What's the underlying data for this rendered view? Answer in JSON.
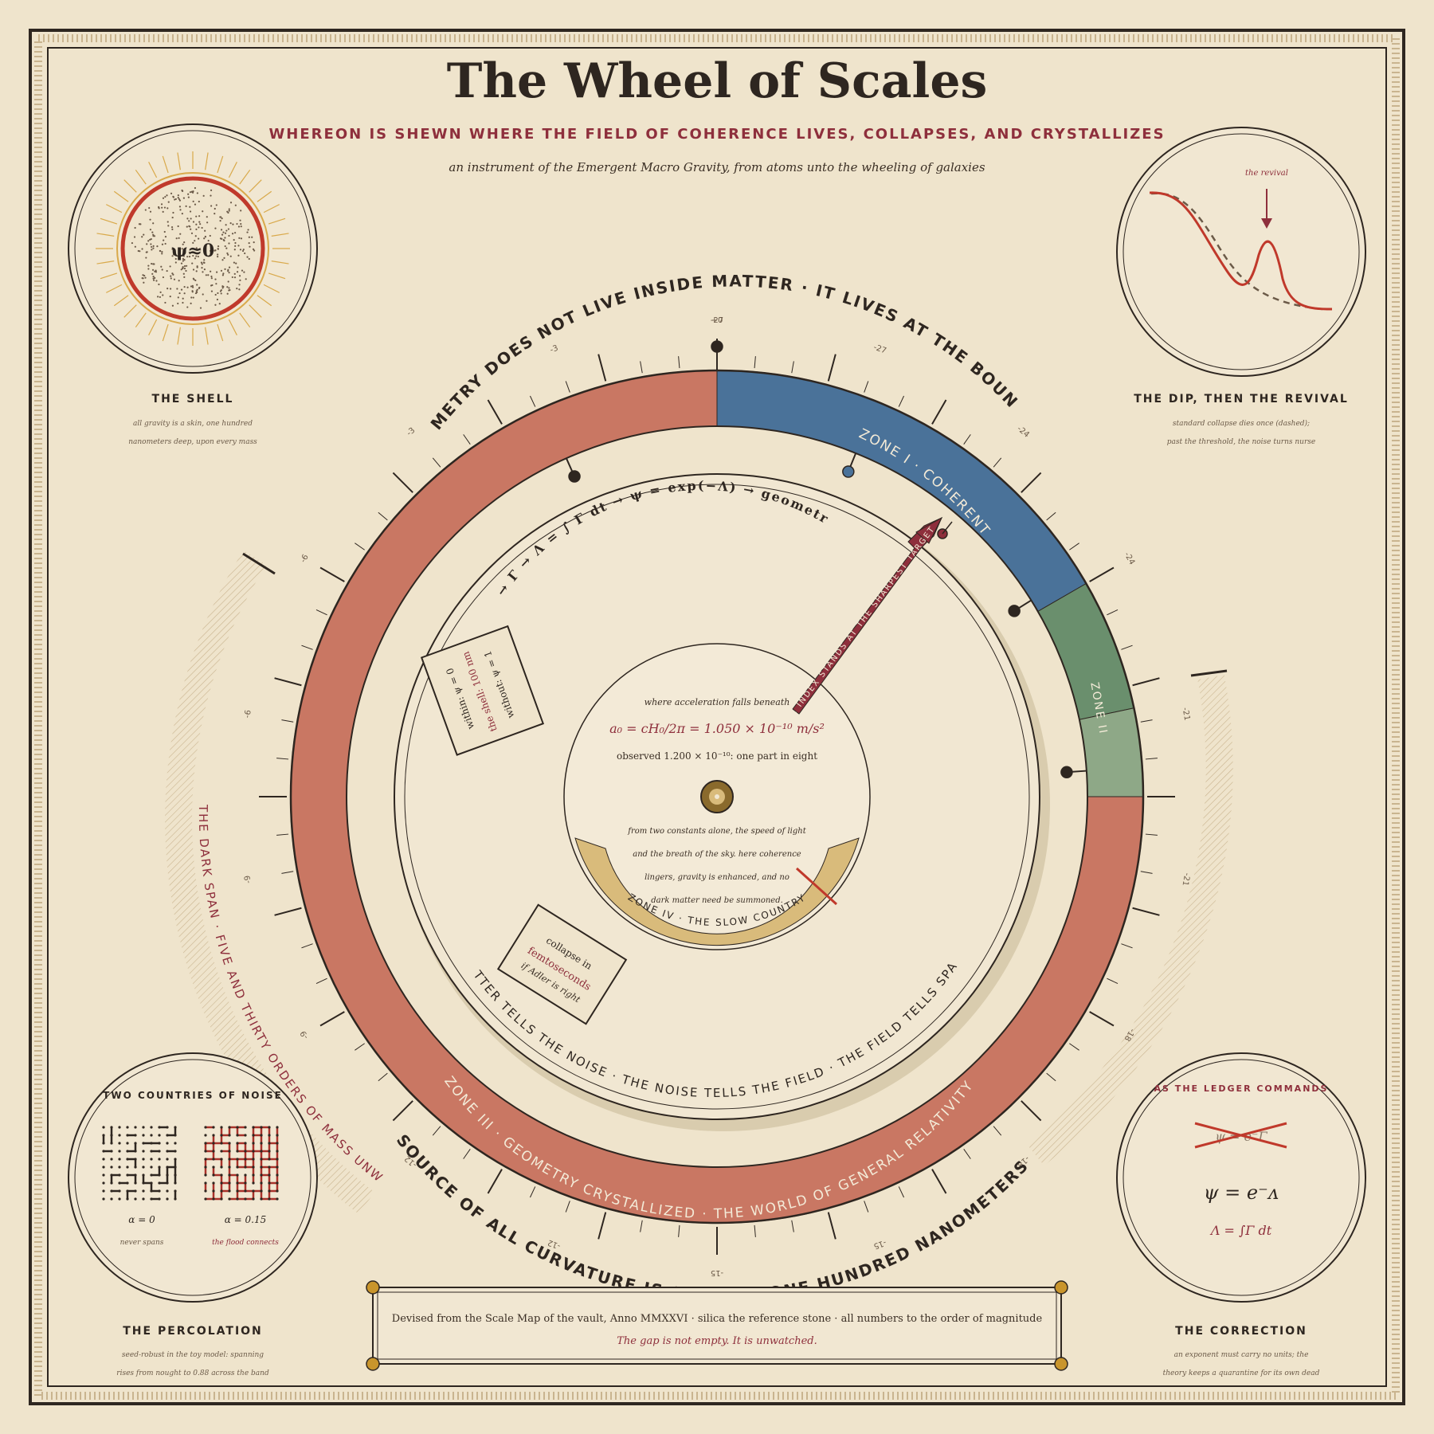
{
  "header": {
    "title": "The Wheel of Scales",
    "subtitle": "WHEREON IS SHEWN WHERE THE FIELD OF COHERENCE LIVES, COLLAPSES, AND CRYSTALLIZES",
    "tagline": "an instrument of the Emergent Macro Gravity, from atoms unto the wheeling of galaxies"
  },
  "ring_text": {
    "outer_top": "GEOMETRY DOES NOT LIVE INSIDE MATTER · IT LIVES AT THE BOUNDARY",
    "outer_bottom": "THE SOURCE OF ALL CURVATURE IS A SHELL, ONE HUNDRED NANOMETERS DEEP",
    "dark_span": "THE DARK SPAN · FIVE AND THIRTY ORDERS OF MASS UNWATCHED",
    "inner_top": "ρ → Γ → Λ = ∫ Γ dt → ψ = exp(−Λ) → geometry",
    "inner_bottom": "MATTER TELLS THE NOISE · THE NOISE TELLS THE FIELD · THE FIELD TELLS SPACE",
    "zone1": "ZONE I · COHERENT",
    "zone2": "ZONE II",
    "zone3": "ZONE III · GEOMETRY CRYSTALLIZED · THE WORLD OF GENERAL RELATIVITY",
    "zone4": "ZONE IV · THE SLOW COUNTRY",
    "index": "THE INDEX STANDS AT THE SHARPEST TARGET"
  },
  "ticks": {
    "top_labels": [
      "-27",
      "-27",
      "-24",
      "-24",
      "-21",
      "-21",
      "-18",
      "-18",
      "-15",
      "-15",
      "-12",
      "-12",
      "-9",
      "-9",
      "-6",
      "-6",
      "-3",
      "-3",
      "+0"
    ]
  },
  "center": {
    "line1": "where acceleration falls beneath",
    "formula": "a₀ = cH₀/2π = 1.050 × 10⁻¹⁰ m/s²",
    "observed": "observed 1.200 × 10⁻¹⁰: one part in eight",
    "desc1": "from two constants alone, the speed of light",
    "desc2": "and the breath of the sky. here coherence",
    "desc3": "lingers, gravity is enhanced, and no",
    "desc4": "dark matter need be summoned."
  },
  "shell_card": {
    "within": "within: ψ = 0",
    "shell": "the shell: 100 nm",
    "without": "without: ψ = 1"
  },
  "collapse_card": {
    "line1": "collapse in",
    "line2": "femtoseconds",
    "line3": "if Adler is right"
  },
  "medallions": {
    "shell": {
      "symbol": "ψ≈0",
      "title": "THE SHELL",
      "cap1": "all gravity is a skin, one hundred",
      "cap2": "nanometers deep, upon every mass"
    },
    "revival": {
      "label": "the revival",
      "title": "THE DIP, THEN THE REVIVAL",
      "cap1": "standard collapse dies once (dashed);",
      "cap2": "past the threshold, the noise turns nurse"
    },
    "percolation": {
      "heading": "TWO COUNTRIES OF NOISE",
      "alpha0": "α = 0",
      "alpha1": "α = 0.15",
      "note0": "never spans",
      "note1": "the flood connects",
      "title": "THE PERCOLATION",
      "cap1": "seed-robust in the toy model: spanning",
      "cap2": "rises from nought to 0.88 across the band"
    },
    "correction": {
      "heading": "AS THE LEDGER COMMANDS",
      "struck": "ψ = e⁻Γ",
      "formula": "ψ = e⁻ᴧ",
      "lambda": "Λ = ∫Γ dt",
      "title": "THE CORRECTION",
      "cap1": "an exponent must carry no units; the",
      "cap2": "theory keeps a quarantine for its own dead"
    }
  },
  "footer": {
    "line1": "Devised from the Scale Map of the vault, Anno MMXXVI · silica the reference stone · all numbers to the order of magnitude",
    "line2": "The gap is not empty. It is unwatched."
  },
  "colors": {
    "paper": "#efe4cc",
    "zone_red": "#c97763",
    "zone_blue": "#4a7299",
    "zone_green": "#6a8f6d",
    "zone_green_light": "#8ea887",
    "zone_gold": "#d9bb7b",
    "ink": "#2e2620",
    "crimson": "#8e2f3c"
  }
}
